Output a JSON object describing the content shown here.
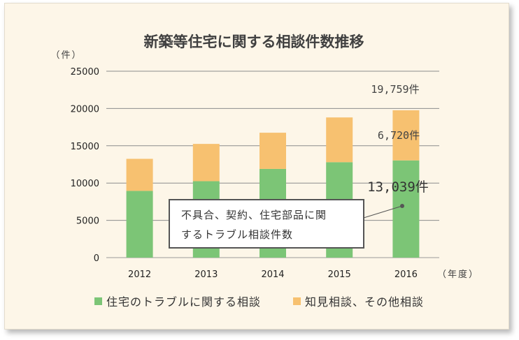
{
  "chart_data": {
    "type": "bar",
    "stacked": true,
    "title": "新築等住宅に関する相談件数推移",
    "ylabel": "（件）",
    "xlabel": "（年度）",
    "categories": [
      "2012",
      "2013",
      "2014",
      "2015",
      "2016"
    ],
    "ylim": [
      0,
      25000
    ],
    "yticks": [
      0,
      5000,
      10000,
      15000,
      20000,
      25000
    ],
    "grid": true,
    "legend_position": "bottom",
    "series": [
      {
        "name": "住宅のトラブルに関する相談",
        "color": "#7cc576",
        "values": [
          8950,
          10250,
          11900,
          12800,
          13039
        ]
      },
      {
        "name": "知見相談、その他相談",
        "color": "#f7c170",
        "values": [
          4300,
          5000,
          4850,
          6000,
          6720
        ]
      }
    ],
    "annotations": {
      "total_2016": "19,759件",
      "other_2016": "6,720件",
      "trouble_2016": "13,039件"
    },
    "callout": {
      "line1": "不具合、契約、住宅部品に関",
      "line2": "するトラブル相談件数"
    }
  }
}
